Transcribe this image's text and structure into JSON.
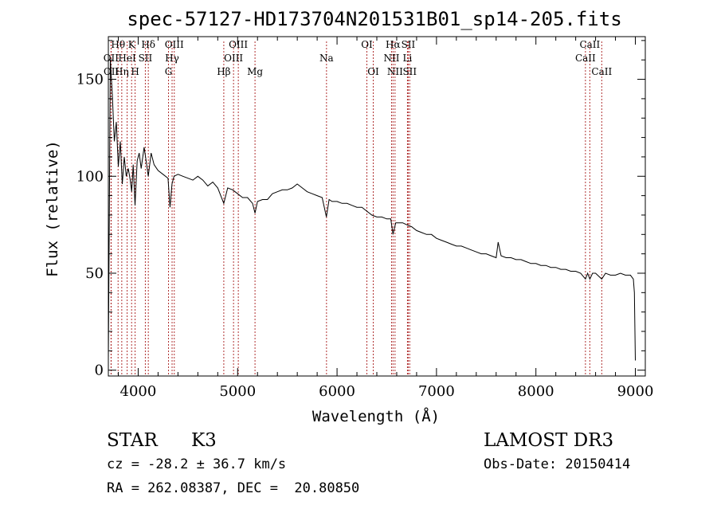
{
  "chart_data": {
    "type": "line",
    "title": "spec-57127-HD173704N201531B01_sp14-205.fits",
    "xlabel": "Wavelength (Å)",
    "ylabel": "Flux (relative)",
    "xlim": [
      3700,
      9100
    ],
    "ylim": [
      -3,
      172
    ],
    "xticks": [
      4000,
      5000,
      6000,
      7000,
      8000,
      9000
    ],
    "yticks": [
      0,
      50,
      100,
      150
    ],
    "series": [
      {
        "name": "flux",
        "x": [
          3700,
          3720,
          3740,
          3760,
          3780,
          3800,
          3820,
          3840,
          3860,
          3880,
          3900,
          3920,
          3935,
          3950,
          3968,
          3990,
          4010,
          4030,
          4060,
          4080,
          4101,
          4130,
          4160,
          4200,
          4250,
          4300,
          4320,
          4340,
          4360,
          4400,
          4450,
          4500,
          4550,
          4600,
          4650,
          4700,
          4750,
          4800,
          4861,
          4900,
          4950,
          5000,
          5050,
          5100,
          5150,
          5175,
          5200,
          5250,
          5300,
          5350,
          5400,
          5450,
          5500,
          5550,
          5600,
          5650,
          5700,
          5750,
          5800,
          5850,
          5893,
          5920,
          5950,
          6000,
          6050,
          6100,
          6150,
          6200,
          6250,
          6300,
          6350,
          6400,
          6450,
          6500,
          6540,
          6563,
          6590,
          6620,
          6660,
          6700,
          6750,
          6800,
          6850,
          6900,
          6950,
          7000,
          7050,
          7100,
          7150,
          7200,
          7250,
          7300,
          7350,
          7400,
          7450,
          7500,
          7550,
          7600,
          7620,
          7650,
          7700,
          7750,
          7800,
          7850,
          7900,
          7950,
          8000,
          8050,
          8100,
          8150,
          8200,
          8250,
          8300,
          8350,
          8400,
          8450,
          8498,
          8520,
          8542,
          8570,
          8600,
          8662,
          8700,
          8750,
          8800,
          8850,
          8900,
          8950,
          8980,
          8990,
          9000
        ],
        "values": [
          5,
          160,
          142,
          118,
          128,
          105,
          118,
          96,
          110,
          100,
          104,
          98,
          92,
          106,
          85,
          108,
          112,
          104,
          115,
          108,
          100,
          112,
          106,
          103,
          101,
          99,
          84,
          96,
          100,
          101,
          100,
          99,
          98,
          100,
          98,
          95,
          97,
          94,
          86,
          94,
          93,
          91,
          89,
          89,
          86,
          81,
          87,
          88,
          88,
          91,
          92,
          93,
          93,
          94,
          96,
          94,
          92,
          91,
          90,
          89,
          79,
          88,
          87,
          87,
          86,
          86,
          85,
          84,
          84,
          82,
          80,
          79,
          79,
          78,
          78,
          70,
          76,
          76,
          76,
          75,
          74,
          72,
          71,
          70,
          70,
          68,
          67,
          66,
          65,
          64,
          64,
          63,
          62,
          61,
          60,
          60,
          59,
          58,
          66,
          59,
          58,
          58,
          57,
          57,
          56,
          55,
          55,
          54,
          54,
          53,
          53,
          52,
          52,
          51,
          51,
          50,
          47,
          50,
          47,
          50,
          50,
          47,
          50,
          49,
          49,
          50,
          49,
          49,
          47,
          40,
          5
        ]
      }
    ],
    "lines": [
      {
        "label": "OII",
        "wave": 3727,
        "row": 1
      },
      {
        "label": "OII",
        "wave": 3729,
        "row": 2
      },
      {
        "label": "Hθ",
        "wave": 3798,
        "row": 0
      },
      {
        "label": "Hη",
        "wave": 3835,
        "row": 2
      },
      {
        "label": "HeI",
        "wave": 3889,
        "row": 1
      },
      {
        "label": "K",
        "wave": 3934,
        "row": 0
      },
      {
        "label": "H",
        "wave": 3969,
        "row": 2
      },
      {
        "label": "SII",
        "wave": 4072,
        "row": 1
      },
      {
        "label": "Hδ",
        "wave": 4102,
        "row": 0
      },
      {
        "label": "G",
        "wave": 4305,
        "row": 2
      },
      {
        "label": "Hγ",
        "wave": 4341,
        "row": 1
      },
      {
        "label": "OIII",
        "wave": 4363,
        "row": 0
      },
      {
        "label": "Hβ",
        "wave": 4861,
        "row": 2
      },
      {
        "label": "OIII",
        "wave": 4959,
        "row": 1
      },
      {
        "label": "OIII",
        "wave": 5007,
        "row": 0
      },
      {
        "label": "Mg",
        "wave": 5175,
        "row": 2
      },
      {
        "label": "Na",
        "wave": 5894,
        "row": 1
      },
      {
        "label": "OI",
        "wave": 6300,
        "row": 0
      },
      {
        "label": "OI",
        "wave": 6364,
        "row": 2
      },
      {
        "label": "NII",
        "wave": 6548,
        "row": 1
      },
      {
        "label": "Hα",
        "wave": 6563,
        "row": 0
      },
      {
        "label": "NII",
        "wave": 6583,
        "row": 2
      },
      {
        "label": "Li",
        "wave": 6708,
        "row": 1
      },
      {
        "label": "SII",
        "wave": 6716,
        "row": 0
      },
      {
        "label": "SII",
        "wave": 6731,
        "row": 2
      },
      {
        "label": "CaII",
        "wave": 8498,
        "row": 1
      },
      {
        "label": "CaII",
        "wave": 8542,
        "row": 0
      },
      {
        "label": "CaII",
        "wave": 8662,
        "row": 2
      }
    ]
  },
  "info": {
    "object_type": "STAR",
    "subclass": "K3",
    "survey": "LAMOST DR3",
    "cz": "cz = -28.2 ± 36.7 km/s",
    "obs_date": "Obs-Date: 20150414",
    "coords": "RA = 262.08387, DEC =  20.80850"
  },
  "colors": {
    "spectrum": "#000000",
    "line_marker": "#b03030",
    "background": "#ffffff"
  }
}
